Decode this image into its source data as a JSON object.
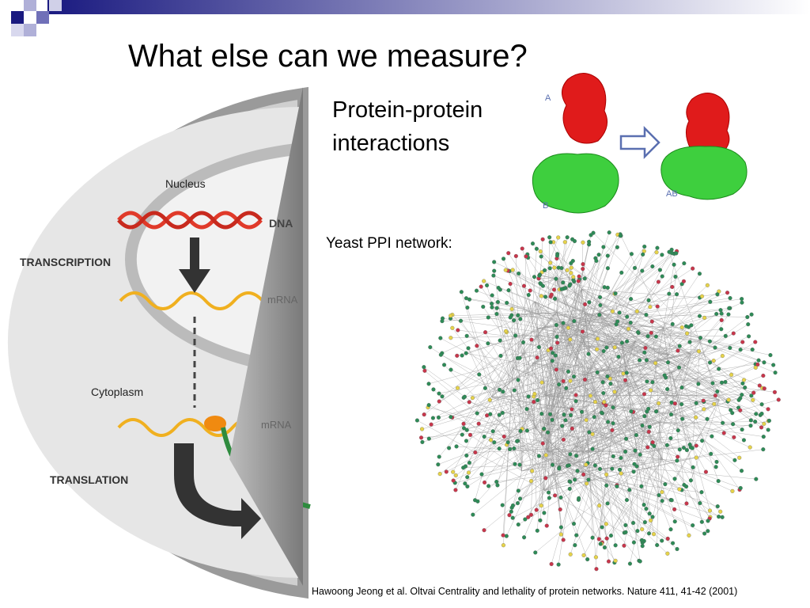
{
  "slide": {
    "title": "What else can we measure?",
    "ppi_heading": [
      "Protein-protein",
      "interactions"
    ],
    "network_label": "Yeast PPI network:",
    "citation": "Hawoong Jeong et al. Oltvai Centrality and lethality of protein networks. Nature 411, 41-42 (2001)",
    "cell_diagram": {
      "nucleus": "Nucleus",
      "dna": "DNA",
      "transcription": "TRANSCRIPTION",
      "mrna_nucleus": "mRNA",
      "cytoplasm": "Cytoplasm",
      "mrna_cytoplasm": "mRNA",
      "translation": "TRANSLATION"
    },
    "protein_diagram": {
      "a": "A",
      "b": "B",
      "ab": "AB"
    }
  }
}
